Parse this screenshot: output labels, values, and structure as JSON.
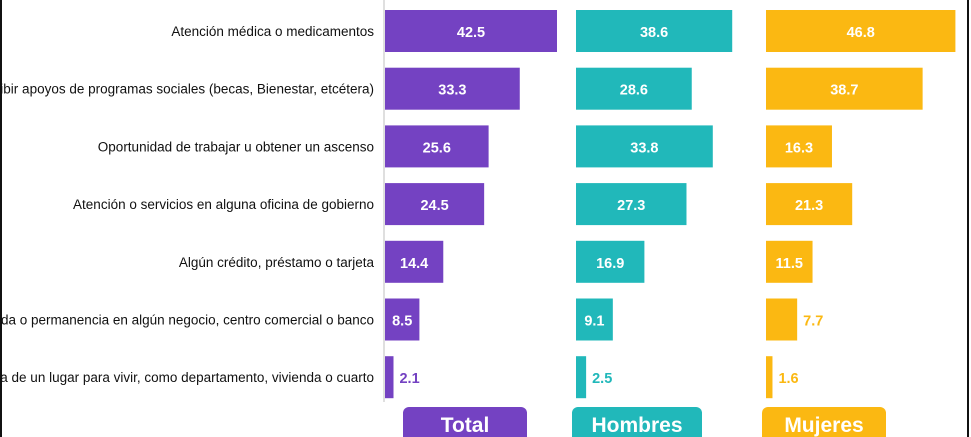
{
  "chart_data": {
    "type": "bar",
    "orientation": "horizontal",
    "categories": [
      "Atención médica o medicamentos",
      "Recibir apoyos de programas sociales (becas, Bienestar, etcétera)",
      "Oportunidad de trabajar u obtener un ascenso",
      "Atención o servicios en alguna oficina de gobierno",
      "Algún crédito, préstamo o tarjeta",
      "Entrada o permanencia en algún negocio, centro comercial o banco",
      "Renta de un lugar para vivir, como departamento, vivienda o cuarto"
    ],
    "series": [
      {
        "name": "Total",
        "color": "#7442c2",
        "values": [
          42.5,
          33.3,
          25.6,
          24.5,
          14.4,
          8.5,
          2.1
        ]
      },
      {
        "name": "Hombres",
        "color": "#21b8ba",
        "values": [
          38.6,
          28.6,
          33.8,
          27.3,
          16.9,
          9.1,
          2.5
        ]
      },
      {
        "name": "Mujeres",
        "color": "#fbb812",
        "values": [
          46.8,
          38.7,
          16.3,
          21.3,
          11.5,
          7.7,
          1.6
        ]
      }
    ],
    "xlim": [
      0,
      50
    ],
    "grid": false,
    "legend": "bottom"
  }
}
